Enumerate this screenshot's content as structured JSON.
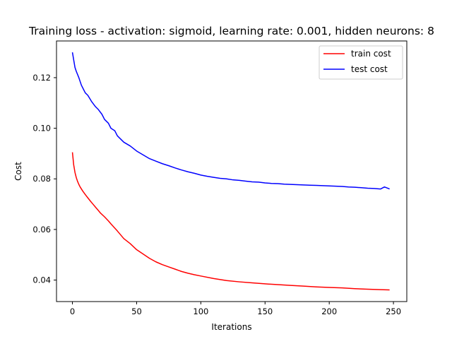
{
  "chart_data": {
    "type": "line",
    "title": "Training loss - activation: sigmoid, learning rate: 0.001, hidden neurons: 8",
    "xlabel": "Iterations",
    "ylabel": "Cost",
    "xlim": [
      -12.4,
      260.4
    ],
    "ylim": [
      0.0315,
      0.1345
    ],
    "xticks": [
      0,
      50,
      100,
      150,
      200,
      250
    ],
    "yticks": [
      0.04,
      0.06,
      0.08,
      0.1,
      0.12
    ],
    "ytick_labels": [
      "0.04",
      "0.06",
      "0.08",
      "0.10",
      "0.12"
    ],
    "grid": false,
    "legend_position": "top-right",
    "series": [
      {
        "name": "train cost",
        "color": "#ff0000",
        "x": [
          0,
          1,
          2,
          3,
          4,
          5,
          6,
          8,
          10,
          12,
          14,
          16,
          18,
          20,
          22,
          25,
          28,
          30,
          35,
          40,
          45,
          50,
          55,
          60,
          65,
          70,
          75,
          80,
          85,
          90,
          95,
          100,
          110,
          120,
          130,
          140,
          150,
          160,
          170,
          180,
          190,
          200,
          210,
          220,
          230,
          240,
          247
        ],
        "y": [
          0.0905,
          0.0855,
          0.0825,
          0.0805,
          0.079,
          0.0778,
          0.0768,
          0.0752,
          0.0738,
          0.0725,
          0.0712,
          0.07,
          0.0688,
          0.0676,
          0.0664,
          0.065,
          0.0634,
          0.0622,
          0.0594,
          0.0564,
          0.0544,
          0.052,
          0.0503,
          0.0486,
          0.0472,
          0.0461,
          0.0452,
          0.0443,
          0.0434,
          0.0427,
          0.0421,
          0.0416,
          0.0406,
          0.0398,
          0.0393,
          0.0389,
          0.0385,
          0.0382,
          0.0379,
          0.0376,
          0.0373,
          0.0371,
          0.0369,
          0.0366,
          0.0364,
          0.0362,
          0.0361
        ]
      },
      {
        "name": "test cost",
        "color": "#0000ff",
        "x": [
          0,
          1,
          2,
          3,
          5,
          7,
          10,
          12,
          15,
          18,
          20,
          23,
          25,
          28,
          30,
          33,
          35,
          40,
          45,
          50,
          55,
          60,
          65,
          70,
          75,
          80,
          85,
          90,
          95,
          100,
          105,
          110,
          115,
          120,
          125,
          130,
          135,
          140,
          145,
          150,
          155,
          160,
          165,
          170,
          175,
          180,
          185,
          190,
          195,
          200,
          205,
          210,
          215,
          220,
          225,
          230,
          235,
          240,
          243,
          247
        ],
        "y": [
          0.13,
          0.127,
          0.124,
          0.1225,
          0.12,
          0.117,
          0.114,
          0.113,
          0.1105,
          0.1085,
          0.1075,
          0.1055,
          0.1035,
          0.102,
          0.1,
          0.099,
          0.097,
          0.0945,
          0.093,
          0.091,
          0.0895,
          0.088,
          0.087,
          0.086,
          0.0852,
          0.0843,
          0.0835,
          0.0828,
          0.0822,
          0.0815,
          0.081,
          0.0806,
          0.0802,
          0.08,
          0.0796,
          0.0794,
          0.0791,
          0.0788,
          0.0787,
          0.0784,
          0.0782,
          0.0781,
          0.0779,
          0.0778,
          0.0777,
          0.0776,
          0.0775,
          0.0774,
          0.0773,
          0.0772,
          0.0771,
          0.077,
          0.0768,
          0.0767,
          0.0765,
          0.0763,
          0.0762,
          0.076,
          0.0768,
          0.076
        ]
      }
    ]
  }
}
